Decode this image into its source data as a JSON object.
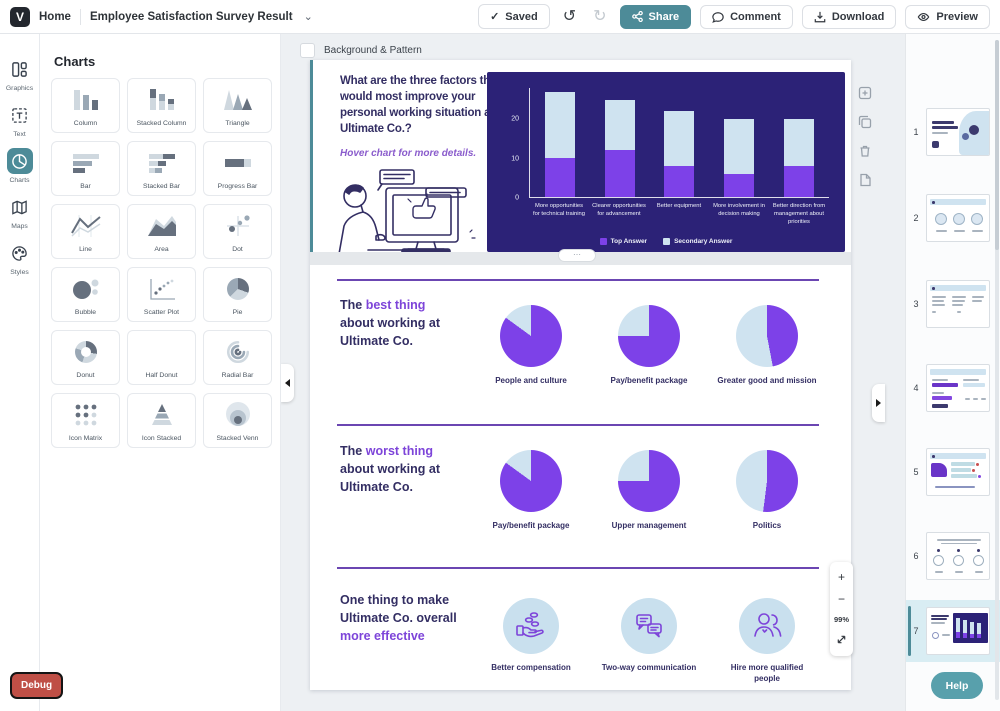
{
  "topbar": {
    "logo_letter": "V",
    "home_label": "Home",
    "doc_title": "Employee Satisfaction Survey Result",
    "saved_label": "Saved",
    "saved_check": "✓",
    "undo_glyph": "↺",
    "redo_glyph": "↻",
    "chevron_glyph": "⌄",
    "share_label": "Share",
    "comment_label": "Comment",
    "download_label": "Download",
    "preview_label": "Preview"
  },
  "left_rail": {
    "items": [
      {
        "id": "graphics",
        "label": "Graphics",
        "active": false
      },
      {
        "id": "text",
        "label": "Text",
        "active": false
      },
      {
        "id": "charts",
        "label": "Charts",
        "active": true
      },
      {
        "id": "maps",
        "label": "Maps",
        "active": false
      },
      {
        "id": "styles",
        "label": "Styles",
        "active": false
      }
    ]
  },
  "charts_panel": {
    "title": "Charts",
    "items": [
      {
        "label": "Column"
      },
      {
        "label": "Stacked Column"
      },
      {
        "label": "Triangle"
      },
      {
        "label": "Bar"
      },
      {
        "label": "Stacked Bar"
      },
      {
        "label": "Progress Bar"
      },
      {
        "label": "Line"
      },
      {
        "label": "Area"
      },
      {
        "label": "Dot"
      },
      {
        "label": "Bubble"
      },
      {
        "label": "Scatter Plot"
      },
      {
        "label": "Pie"
      },
      {
        "label": "Donut"
      },
      {
        "label": "Half Donut"
      },
      {
        "label": "Radial Bar"
      },
      {
        "label": "Icon Matrix"
      },
      {
        "label": "Icon Stacked"
      },
      {
        "label": "Stacked Venn"
      }
    ]
  },
  "canvas": {
    "background_pattern_label": "Background & Pattern",
    "handle_glyph": "⋯",
    "zoom": {
      "plus": "+",
      "minus": "−",
      "level": "99%"
    }
  },
  "slide": {
    "question_heading": "What are the three factors that would most improve your personal working situation at Ultimate Co.?",
    "hover_hint": "Hover chart for more details.",
    "sections": {
      "best": {
        "pre": "The",
        "hl": "best thing",
        "rest": "about working at Ultimate Co."
      },
      "worst": {
        "pre": "The",
        "hl": "worst thing",
        "rest": "about working at Ultimate Co."
      },
      "effective": {
        "pre": "One thing to make Ultimate Co. overall",
        "hl": "more effective",
        "rest": ""
      }
    },
    "effective_items": [
      {
        "icon": "compensation-hand-coins-icon",
        "label": "Better compensation"
      },
      {
        "icon": "two-way-communication-icon",
        "label": "Two-way communication"
      },
      {
        "icon": "hire-people-icon",
        "label": "Hire more qualified people"
      }
    ]
  },
  "chart_data": [
    {
      "type": "bar",
      "stacked": true,
      "title": "What are the three factors that would most improve your personal working situation at Ultimate Co.?",
      "categories": [
        "More opportunities for technical training",
        "Clearer opportunities for advancement",
        "Better equipment",
        "More involvement in decision making",
        "Better direction from management about priorities"
      ],
      "series": [
        {
          "name": "Top Answer",
          "color": "#7d41e8",
          "values": [
            10,
            12,
            8,
            6,
            8
          ]
        },
        {
          "name": "Secondary Answer",
          "color": "#cfe3f0",
          "values": [
            17,
            13,
            14,
            14,
            12
          ]
        }
      ],
      "yticks": [
        0,
        10,
        20
      ],
      "ylim": [
        0,
        28
      ],
      "grid": false,
      "legend_position": "bottom",
      "background": "#2c2277"
    },
    {
      "type": "pie",
      "section": "The best thing about working at Ultimate Co.",
      "colors": {
        "primary": "#7d41e8",
        "secondary": "#cfe3f0"
      },
      "pies": [
        {
          "label": "People and culture",
          "pct": 85
        },
        {
          "label": "Pay/benefit package",
          "pct": 75
        },
        {
          "label": "Greater good and mission",
          "pct": 47
        }
      ]
    },
    {
      "type": "pie",
      "section": "The worst thing about working at Ultimate Co.",
      "colors": {
        "primary": "#7d41e8",
        "secondary": "#cfe3f0"
      },
      "pies": [
        {
          "label": "Pay/benefit package",
          "pct": 85
        },
        {
          "label": "Upper management",
          "pct": 75
        },
        {
          "label": "Politics",
          "pct": 52
        }
      ]
    }
  ],
  "thumbnails": {
    "items": [
      {
        "number": "1"
      },
      {
        "number": "2"
      },
      {
        "number": "3"
      },
      {
        "number": "4"
      },
      {
        "number": "5"
      },
      {
        "number": "6"
      },
      {
        "number": "7",
        "selected": true
      }
    ]
  },
  "floaters": {
    "debug_label": "Debug",
    "help_label": "Help"
  }
}
